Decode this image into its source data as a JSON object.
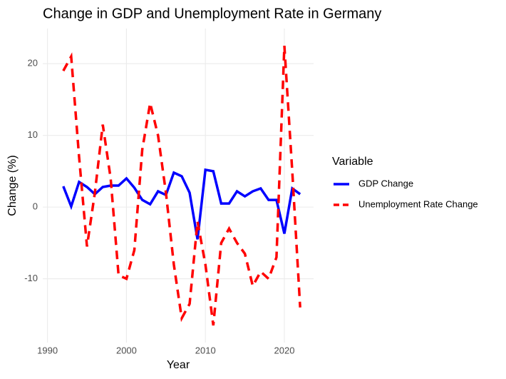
{
  "chart_data": {
    "type": "line",
    "title": "Change in GDP and Unemployment Rate in Germany",
    "x_label": "Year",
    "y_label": "Change (%)",
    "legend_title": "Variable",
    "x": [
      1992,
      1993,
      1994,
      1995,
      1996,
      1997,
      1998,
      1999,
      2000,
      2001,
      2002,
      2003,
      2004,
      2005,
      2006,
      2007,
      2008,
      2009,
      2010,
      2011,
      2012,
      2013,
      2014,
      2015,
      2016,
      2017,
      2018,
      2019,
      2020,
      2021,
      2022
    ],
    "series": [
      {
        "name": "GDP Change",
        "color": "#0000ff",
        "dash": "solid",
        "values": [
          2.9,
          0.1,
          3.5,
          2.8,
          1.8,
          2.8,
          3.0,
          3.0,
          4.0,
          2.7,
          1.0,
          0.4,
          2.2,
          1.7,
          4.8,
          4.3,
          2.0,
          -4.5,
          5.2,
          5.0,
          0.5,
          0.5,
          2.2,
          1.5,
          2.2,
          2.6,
          1.0,
          1.0,
          -3.7,
          2.6,
          1.8
        ]
      },
      {
        "name": "Unemployment Rate Change",
        "color": "#ff0000",
        "dash": "dashed",
        "values": [
          19.0,
          21.0,
          7.0,
          -5.5,
          2.0,
          11.5,
          4.0,
          -9.5,
          -10.0,
          -6.0,
          8.0,
          14.5,
          10.0,
          2.0,
          -8.0,
          -15.5,
          -13.5,
          -2.0,
          -8.0,
          -16.5,
          -5.0,
          -3.0,
          -5.0,
          -6.5,
          -11.0,
          -9.0,
          -10.0,
          -7.0,
          22.5,
          5.0,
          -14.0
        ]
      }
    ],
    "xlim": [
      1989.4,
      2023.7
    ],
    "xticks": [
      1990,
      2000,
      2010,
      2020
    ],
    "ylim": [
      -18.9,
      24.9
    ],
    "yticks": [
      -10,
      0,
      10,
      20
    ],
    "grid": true,
    "legend_position": "right"
  }
}
